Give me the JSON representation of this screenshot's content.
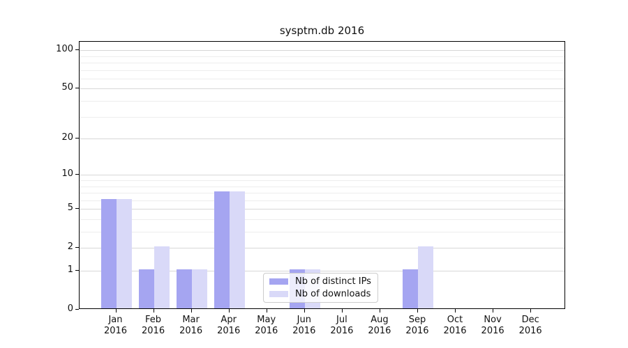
{
  "chart_data": {
    "type": "bar",
    "title": "sysptm.db 2016",
    "categories": [
      "Jan",
      "Feb",
      "Mar",
      "Apr",
      "May",
      "Jun",
      "Jul",
      "Aug",
      "Sep",
      "Oct",
      "Nov",
      "Dec"
    ],
    "x_year": "2016",
    "series": [
      {
        "name": "Nb of distinct IPs",
        "color": "#a5a5f1",
        "values": [
          6,
          1,
          1,
          7,
          0,
          1,
          0,
          0,
          1,
          0,
          0,
          0
        ]
      },
      {
        "name": "Nb of downloads",
        "color": "#d9d9f8",
        "values": [
          6,
          2,
          1,
          7,
          0,
          1,
          0,
          0,
          2,
          0,
          0,
          0
        ]
      }
    ],
    "y_scale": "log1p",
    "y_ticks_major": [
      0,
      1,
      2,
      5,
      10,
      20,
      50,
      100
    ],
    "y_ticks_minor": [
      3,
      4,
      6,
      7,
      8,
      9,
      30,
      40,
      60,
      70,
      80,
      90
    ],
    "ylim": [
      0,
      115
    ],
    "xlabel": "",
    "ylabel": "",
    "grid": true,
    "legend_position": "inside-lower-center"
  },
  "colors": {
    "grid_major": "#d7d7d7",
    "grid_minor": "#ededed",
    "axis": "#000000",
    "text": "#111111",
    "legend_border": "#cccccc"
  }
}
